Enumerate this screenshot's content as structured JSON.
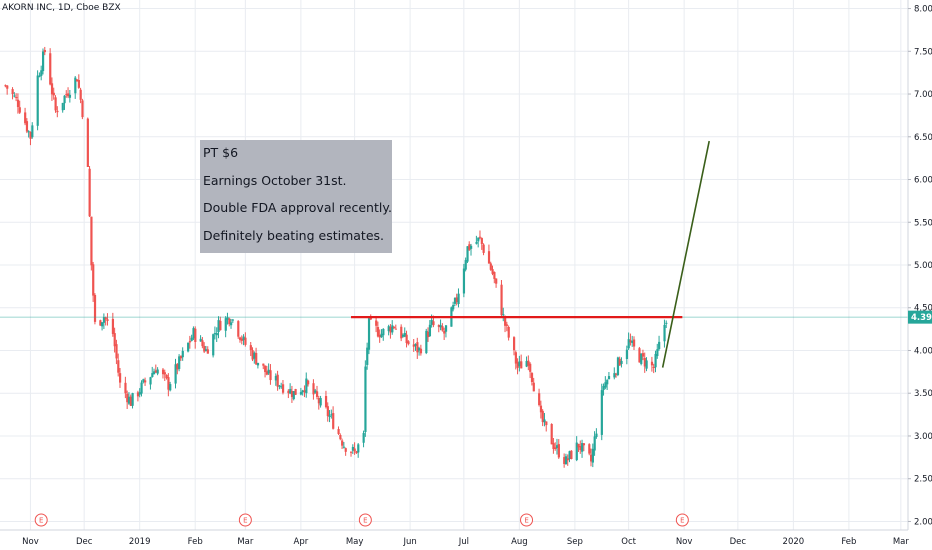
{
  "chart_data": {
    "type": "candlestick",
    "title": "AKORN INC, 1D, Cboe BZX",
    "ylim": [
      1.9,
      8.1
    ],
    "y_ticks": [
      "8.00",
      "7.50",
      "7.00",
      "6.50",
      "6.00",
      "5.50",
      "5.00",
      "4.50",
      "4.00",
      "3.50",
      "3.00",
      "2.50",
      "2.00"
    ],
    "y_tick_values": [
      8.0,
      7.5,
      7.0,
      6.5,
      6.0,
      5.5,
      5.0,
      4.5,
      4.0,
      3.5,
      3.0,
      2.5,
      2.0
    ],
    "x_ticks": [
      "Nov",
      "Dec",
      "2019",
      "Feb",
      "Mar",
      "Apr",
      "May",
      "Jun",
      "Jul",
      "Aug",
      "Sep",
      "Oct",
      "Nov",
      "Dec",
      "2020",
      "Feb",
      "Mar"
    ],
    "x_tick_dates": [
      "2018-11-01",
      "2018-12-01",
      "2019-01-01",
      "2019-02-01",
      "2019-03-01",
      "2019-04-01",
      "2019-05-01",
      "2019-06-01",
      "2019-07-01",
      "2019-08-01",
      "2019-09-01",
      "2019-10-01",
      "2019-11-01",
      "2019-12-01",
      "2020-01-01",
      "2020-02-01",
      "2020-03-01"
    ],
    "last_price": "4.39",
    "last_price_value": 4.39,
    "earnings_marker_label": "E",
    "earnings_dates": [
      "2018-11-07",
      "2019-03-01",
      "2019-05-07",
      "2019-08-05",
      "2019-10-31"
    ],
    "close_series": [
      [
        "2018-10-18",
        7.1
      ],
      [
        "2018-10-25",
        6.9
      ],
      [
        "2018-11-01",
        6.5
      ],
      [
        "2018-11-05",
        7.2
      ],
      [
        "2018-11-09",
        7.5
      ],
      [
        "2018-11-15",
        6.8
      ],
      [
        "2018-11-21",
        7.0
      ],
      [
        "2018-11-27",
        7.2
      ],
      [
        "2018-11-30",
        6.8
      ],
      [
        "2018-12-03",
        6.1
      ],
      [
        "2018-12-05",
        5.0
      ],
      [
        "2018-12-07",
        4.3
      ],
      [
        "2018-12-12",
        4.4
      ],
      [
        "2018-12-17",
        4.2
      ],
      [
        "2018-12-21",
        3.6
      ],
      [
        "2018-12-27",
        3.4
      ],
      [
        "2019-01-03",
        3.6
      ],
      [
        "2019-01-10",
        3.8
      ],
      [
        "2019-01-17",
        3.6
      ],
      [
        "2019-01-24",
        3.9
      ],
      [
        "2019-01-31",
        4.2
      ],
      [
        "2019-02-07",
        4.0
      ],
      [
        "2019-02-14",
        4.3
      ],
      [
        "2019-02-21",
        4.4
      ],
      [
        "2019-02-28",
        4.1
      ],
      [
        "2019-03-07",
        3.9
      ],
      [
        "2019-03-14",
        3.7
      ],
      [
        "2019-03-21",
        3.6
      ],
      [
        "2019-03-28",
        3.5
      ],
      [
        "2019-04-04",
        3.6
      ],
      [
        "2019-04-11",
        3.4
      ],
      [
        "2019-04-18",
        3.2
      ],
      [
        "2019-04-25",
        2.9
      ],
      [
        "2019-05-01",
        2.8
      ],
      [
        "2019-05-06",
        3.0
      ],
      [
        "2019-05-07",
        3.8
      ],
      [
        "2019-05-09",
        4.3
      ],
      [
        "2019-05-16",
        4.2
      ],
      [
        "2019-05-23",
        4.3
      ],
      [
        "2019-05-30",
        4.1
      ],
      [
        "2019-06-06",
        4.0
      ],
      [
        "2019-06-13",
        4.3
      ],
      [
        "2019-06-20",
        4.2
      ],
      [
        "2019-06-27",
        4.6
      ],
      [
        "2019-07-03",
        5.2
      ],
      [
        "2019-07-10",
        5.3
      ],
      [
        "2019-07-17",
        4.9
      ],
      [
        "2019-07-24",
        4.3
      ],
      [
        "2019-07-31",
        3.8
      ],
      [
        "2019-08-06",
        3.9
      ],
      [
        "2019-08-13",
        3.2
      ],
      [
        "2019-08-20",
        2.9
      ],
      [
        "2019-08-27",
        2.7
      ],
      [
        "2019-09-03",
        2.9
      ],
      [
        "2019-09-10",
        2.7
      ],
      [
        "2019-09-17",
        3.6
      ],
      [
        "2019-09-24",
        3.8
      ],
      [
        "2019-10-01",
        4.1
      ],
      [
        "2019-10-08",
        3.9
      ],
      [
        "2019-10-15",
        3.8
      ],
      [
        "2019-10-22",
        4.39
      ]
    ],
    "annotations": [
      {
        "type": "horizontal-segment",
        "y": 4.39,
        "x_start": "2019-04-29",
        "x_end": "2019-10-31",
        "color": "#e21a1a"
      },
      {
        "type": "trend-line",
        "points": [
          [
            "2019-10-20",
            3.8
          ],
          [
            "2019-11-15",
            6.45
          ]
        ],
        "color": "#3a5f1a"
      }
    ]
  },
  "note": {
    "lines": [
      "PT $6",
      "Earnings October 31st.",
      "Double FDA approval recently.",
      "Definitely beating estimates."
    ]
  },
  "colors": {
    "up": "#26a69a",
    "down": "#ef5350",
    "grid": "#e9ecf1",
    "price_line": "#26a69a"
  }
}
